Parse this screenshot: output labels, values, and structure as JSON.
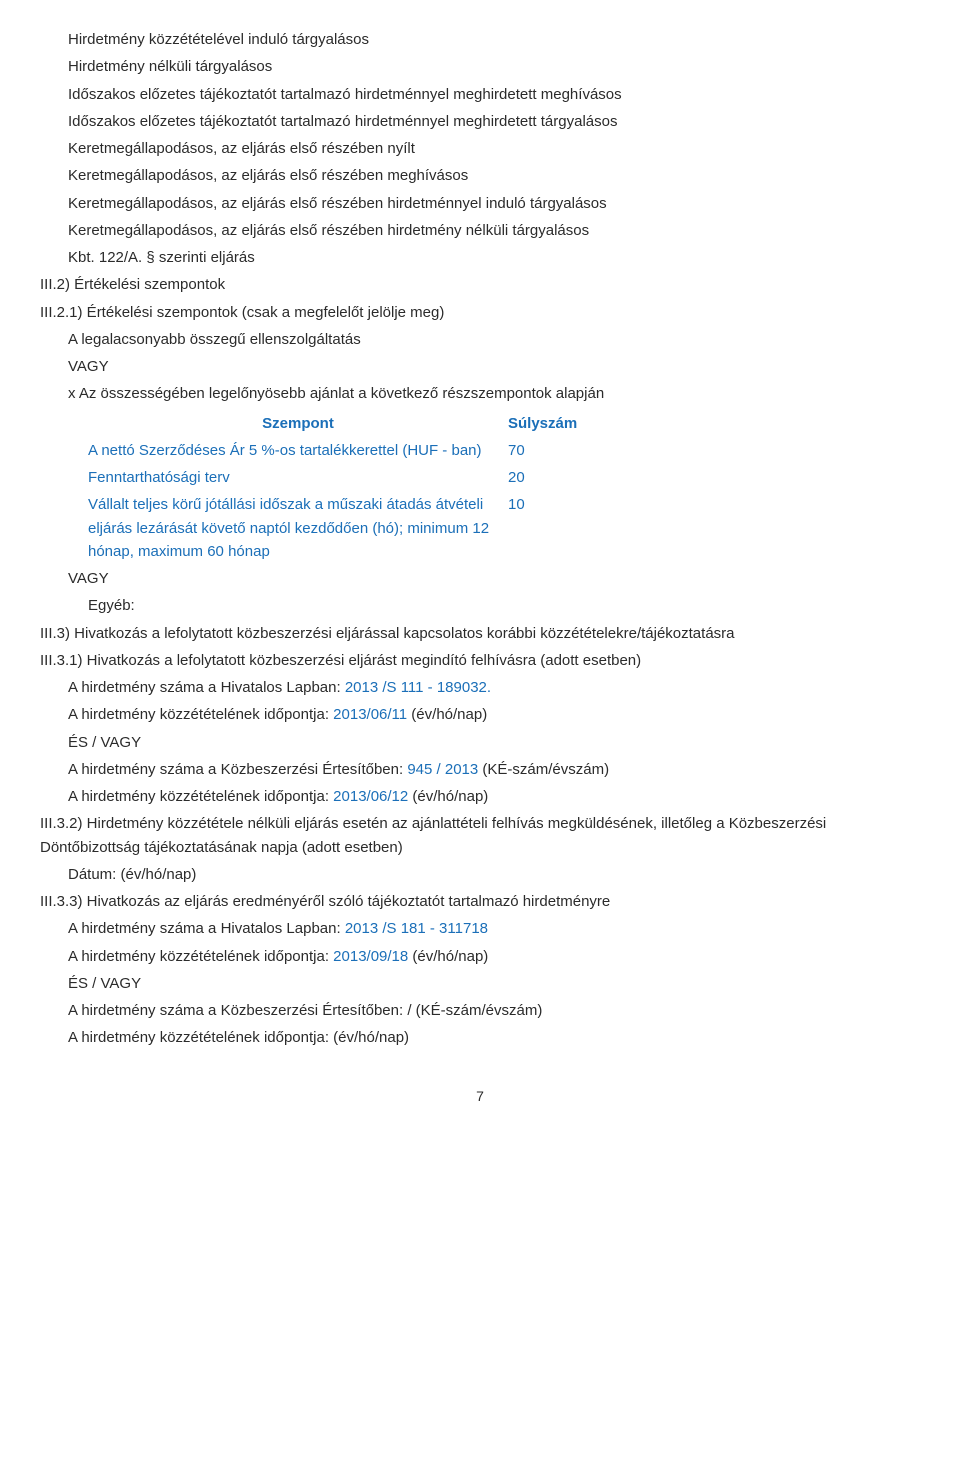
{
  "procedure_types": {
    "l1": "Hirdetmény közzétételével induló tárgyalásos",
    "l2": "Hirdetmény nélküli tárgyalásos",
    "l3": "Időszakos előzetes tájékoztatót tartalmazó hirdetménnyel meghirdetett meghívásos",
    "l4": "Időszakos előzetes tájékoztatót tartalmazó hirdetménnyel meghirdetett tárgyalásos",
    "l5": "Keretmegállapodásos, az eljárás első részében nyílt",
    "l6": "Keretmegállapodásos, az eljárás első részében meghívásos",
    "l7": "Keretmegállapodásos, az eljárás első részében hirdetménnyel induló tárgyalásos",
    "l8": "Keretmegállapodásos, az eljárás első részében hirdetmény nélküli tárgyalásos",
    "l9": "Kbt. 122/A. § szerinti eljárás"
  },
  "iii2": {
    "heading": "III.2) Értékelési szempontok",
    "sub": "III.2.1) Értékelési szempontok (csak a megfelelőt jelölje meg)",
    "lowest": "A legalacsonyabb összegű ellenszolgáltatás",
    "or": "VAGY",
    "most_adv": "x Az összességében legelőnyösebb ajánlat a következő részszempontok alapján",
    "th_left": "Szempont",
    "th_right": "Súlyszám",
    "rows": [
      {
        "left": "A nettó Szerződéses Ár 5 %-os tartalékkerettel (HUF - ban)",
        "right": "70"
      },
      {
        "left": "Fenntarthatósági terv",
        "right": "20"
      },
      {
        "left": "Vállalt teljes körű jótállási időszak a műszaki átadás átvételi eljárás lezárását követő naptól kezdődően (hó); minimum 12 hónap, maximum 60 hónap",
        "right": "10"
      }
    ],
    "or2": "VAGY",
    "other": "Egyéb:"
  },
  "iii3": {
    "heading": "III.3) Hivatkozás a lefolytatott közbeszerzési eljárással kapcsolatos korábbi közzétételekre/tájékoztatásra",
    "s1": {
      "heading": "III.3.1) Hivatkozás a lefolytatott közbeszerzési eljárást megindító felhívásra (adott esetben)",
      "oj_num_label": "A hirdetmény száma a Hivatalos Lapban: ",
      "oj_num_value": "2013 /S 111 - 189032.",
      "oj_date_label": "A hirdetmény közzétételének időpontja: ",
      "oj_date_value": "2013/06/11",
      "oj_date_suffix": " (év/hó/nap)",
      "andor": "ÉS / VAGY",
      "ke_num_label": "A hirdetmény száma a Közbeszerzési Értesítőben: ",
      "ke_num_value": "945 / 2013",
      "ke_num_suffix": " (KÉ-szám/évszám)",
      "ke_date_label": "A hirdetmény közzétételének időpontja: ",
      "ke_date_value": "2013/06/12",
      "ke_date_suffix": " (év/hó/nap)"
    },
    "s2": {
      "heading": "III.3.2) Hirdetmény közzététele nélküli eljárás esetén az ajánlattételi felhívás megküldésének, illetőleg a Közbeszerzési Döntőbizottság tájékoztatásának napja (adott esetben)",
      "date": "Dátum: (év/hó/nap)"
    },
    "s3": {
      "heading": "III.3.3) Hivatkozás az eljárás eredményéről szóló tájékoztatót tartalmazó hirdetményre",
      "oj_num_label": "A hirdetmény száma a Hivatalos Lapban: ",
      "oj_num_value": "2013 /S 181 - 311718",
      "oj_date_label": "A hirdetmény közzétételének időpontja: ",
      "oj_date_value": "2013/09/18",
      "oj_date_suffix": " (év/hó/nap)",
      "andor": "ÉS / VAGY",
      "ke_num": "A hirdetmény száma a Közbeszerzési Értesítőben: / (KÉ-szám/évszám)",
      "ke_date": "A hirdetmény közzétételének időpontja: (év/hó/nap)"
    }
  },
  "page_number": "7"
}
